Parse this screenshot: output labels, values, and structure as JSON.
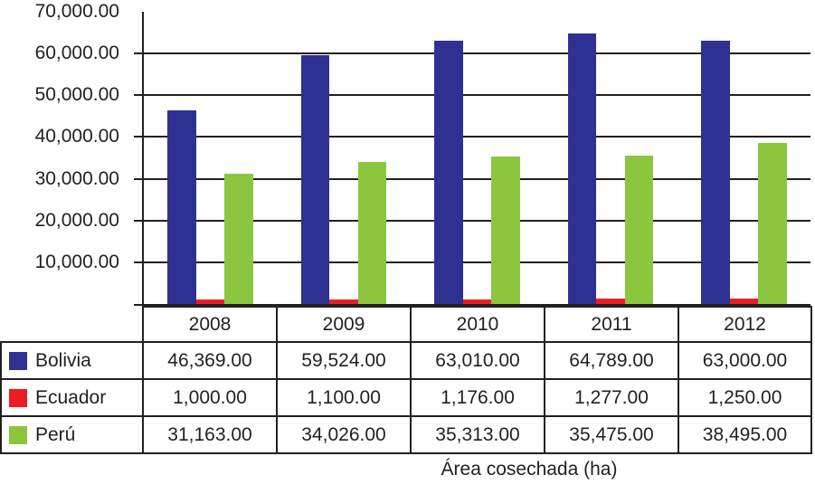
{
  "chart_data": {
    "type": "bar",
    "title": "",
    "xlabel": "Área cosechada (ha)",
    "ylabel": "",
    "categories": [
      "2008",
      "2009",
      "2010",
      "2011",
      "2012"
    ],
    "series": [
      {
        "name": "Bolivia",
        "color": "#2E3192",
        "values": [
          46369,
          59524,
          63010,
          64789,
          63000
        ]
      },
      {
        "name": "Ecuador",
        "color": "#EC1C24",
        "values": [
          1000,
          1100,
          1176,
          1277,
          1250
        ]
      },
      {
        "name": "Perú",
        "color": "#8CC63F",
        "values": [
          31163,
          34026,
          35313,
          35475,
          38495
        ]
      }
    ],
    "ylim": [
      0,
      70000
    ],
    "y_tick_step": 10000,
    "y_tick_labels": [
      "70,000.00",
      "60,000.00",
      "50,000.00",
      "40,000.00",
      "30,000.00",
      "20,000.00",
      "10,000.00"
    ],
    "grid": true,
    "legend_position": "table-left",
    "number_format": "#,##0.00",
    "table_values_display": {
      "Bolivia": [
        "46,369.00",
        "59,524.00",
        "63,010.00",
        "64,789.00",
        "63,000.00"
      ],
      "Ecuador": [
        "1,000.00",
        "1,100.00",
        "1,176.00",
        "1,277.00",
        "1,250.00"
      ],
      "Perú": [
        "31,163.00",
        "34,026.00",
        "35,313.00",
        "35,475.00",
        "38,495.00"
      ]
    }
  },
  "colors": {
    "axis": "#231F20",
    "text": "#231F20",
    "background": "#FFFFFF"
  }
}
